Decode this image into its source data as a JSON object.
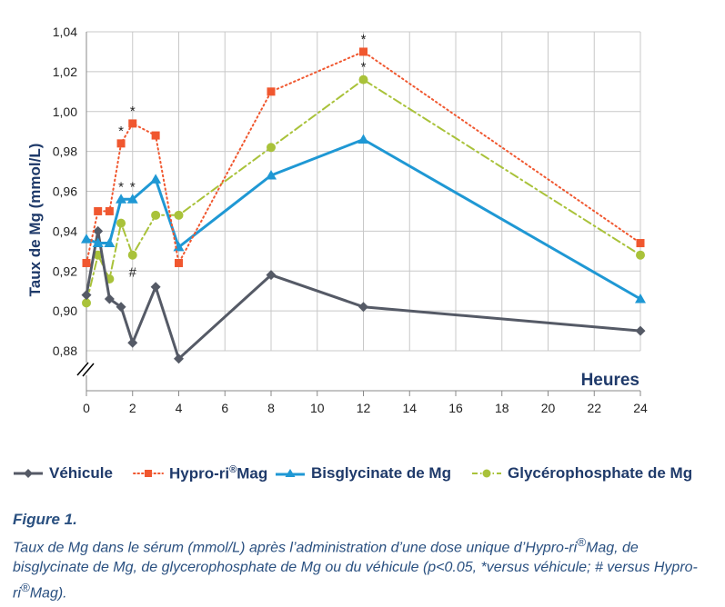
{
  "chart_data": {
    "type": "line",
    "ylabel": "Taux de Mg (mmol/L)",
    "xlabel": "Heures",
    "ylim": [
      0.88,
      1.04
    ],
    "yticks": [
      "0,88",
      "0,90",
      "0,92",
      "0,94",
      "0,96",
      "0,98",
      "1,00",
      "1,02",
      "1,04"
    ],
    "xticks": [
      "0",
      "2",
      "4",
      "6",
      "8",
      "10",
      "12",
      "14",
      "16",
      "18",
      "20",
      "22",
      "24"
    ],
    "grid": true,
    "legend_position": "bottom",
    "series": [
      {
        "name": "Véhicule",
        "color": "#555a66",
        "marker": "diamond",
        "line": "solid",
        "x": [
          0,
          0.5,
          1,
          1.5,
          2,
          3,
          4,
          8,
          12,
          24
        ],
        "y": [
          0.908,
          0.94,
          0.906,
          0.902,
          0.884,
          0.912,
          0.876,
          0.918,
          0.902,
          0.89
        ]
      },
      {
        "name": "Hypro-ri®Mag",
        "color": "#f0572f",
        "marker": "square",
        "line": "dotted",
        "x": [
          0,
          0.5,
          1,
          1.5,
          2,
          3,
          4,
          8,
          12,
          24
        ],
        "y": [
          0.924,
          0.95,
          0.95,
          0.984,
          0.994,
          0.988,
          0.924,
          1.01,
          1.03,
          0.934
        ]
      },
      {
        "name": "Bisglycinate de Mg",
        "color": "#1f98d4",
        "marker": "triangle",
        "line": "solid",
        "x": [
          0,
          0.5,
          1,
          1.5,
          2,
          3,
          4,
          8,
          12,
          24
        ],
        "y": [
          0.936,
          0.934,
          0.934,
          0.956,
          0.956,
          0.966,
          0.932,
          0.968,
          0.986,
          0.906
        ]
      },
      {
        "name": "Glycérophosphate de Mg",
        "color": "#a9c23a",
        "marker": "circle",
        "line": "dashdot",
        "x": [
          0,
          0.5,
          1,
          1.5,
          2,
          3,
          4,
          8,
          12,
          24
        ],
        "y": [
          0.904,
          0.928,
          0.916,
          0.944,
          0.928,
          0.948,
          0.948,
          0.982,
          1.016,
          0.928
        ]
      }
    ],
    "annotations": [
      {
        "text": "*",
        "x": 1.5,
        "y": 0.984
      },
      {
        "text": "*",
        "x": 2,
        "y": 0.994
      },
      {
        "text": "*",
        "x": 12,
        "y": 1.03
      },
      {
        "text": "*",
        "x": 12,
        "y": 1.016
      },
      {
        "text": "*",
        "x": 1.5,
        "y": 0.956
      },
      {
        "text": "*",
        "x": 2,
        "y": 0.956
      },
      {
        "text": "#",
        "x": 2,
        "y": 0.928
      }
    ]
  },
  "legend": {
    "items": [
      {
        "label": "Véhicule"
      },
      {
        "label_pre": "Hypro-ri",
        "label_sup": "®",
        "label_post": "Mag"
      },
      {
        "label": "Bisglycinate de Mg"
      },
      {
        "label": "Glycérophosphate de Mg"
      }
    ]
  },
  "caption": {
    "title": "Figure 1.",
    "text_pre": "Taux de Mg dans le sérum (mmol/L) après l’administration d’une dose unique d’Hypro-ri",
    "text_sup1": "®",
    "text_mid": "Mag, de bisglycinate de Mg, de glycerophosphate de Mg ou du véhicule (p<0.05, *versus véhicule; # versus Hypro-ri",
    "text_sup2": "®",
    "text_post": "Mag)."
  }
}
